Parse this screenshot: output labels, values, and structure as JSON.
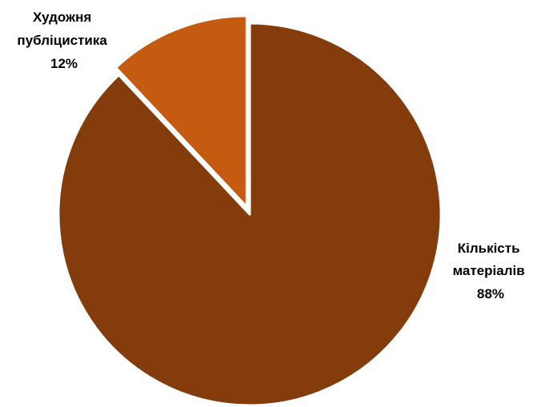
{
  "chart_data": {
    "type": "pie",
    "slices": [
      {
        "name": "Кількість матеріалів",
        "value": 88,
        "label_lines": [
          "Кількість",
          "матеріалів",
          "88%"
        ],
        "color": "#843c0c"
      },
      {
        "name": "Художня публіцистика",
        "value": 12,
        "label_lines": [
          "Художня",
          "публіцистика",
          "12%"
        ],
        "color": "#c55a11",
        "exploded": true
      }
    ],
    "legend": "none",
    "data_labels": "outside"
  }
}
